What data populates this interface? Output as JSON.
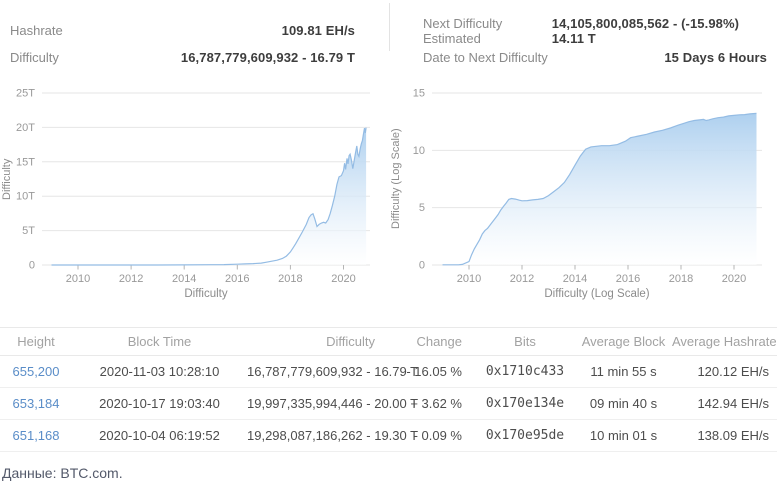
{
  "stats": {
    "left": [
      {
        "label": "Hashrate",
        "value": "109.81 EH/s"
      },
      {
        "label": "Difficulty",
        "value": "16,787,779,609,932 - 16.79 T"
      }
    ],
    "right": [
      {
        "label": "Next Difficulty Estimated",
        "value": "14,105,800,085,562 - (-15.98%) 14.11 T"
      },
      {
        "label": "Date to Next Difficulty",
        "value": "15 Days 6 Hours"
      }
    ]
  },
  "colors": {
    "line": "#94bce4",
    "fill_top": "#aed0ef",
    "fill_bottom": "#ffffff",
    "gridline": "#e6e6e6",
    "tick_text": "#999999",
    "tick_mark": "#b5b5b5",
    "link": "#5a8dc8",
    "change_up": "#2ba84a",
    "change_down": "#e25252"
  },
  "chart_data": [
    {
      "type": "area",
      "title": "Difficulty",
      "xlabel": "Difficulty",
      "ylabel": "Difficulty",
      "ylim": [
        0,
        25
      ],
      "xlim": [
        2008.64,
        2021.0
      ],
      "grid": true,
      "y_ticks": [
        {
          "v": 0,
          "label": "0"
        },
        {
          "v": 5,
          "label": "5T"
        },
        {
          "v": 10,
          "label": "10T"
        },
        {
          "v": 15,
          "label": "15T"
        },
        {
          "v": 20,
          "label": "20T"
        },
        {
          "v": 25,
          "label": "25T"
        }
      ],
      "x_ticks": [
        2010,
        2012,
        2014,
        2016,
        2018,
        2020
      ],
      "points": [
        [
          2009.0,
          0.001
        ],
        [
          2010.0,
          0.001
        ],
        [
          2011.0,
          0.002
        ],
        [
          2012.0,
          0.003
        ],
        [
          2013.0,
          0.005
        ],
        [
          2014.0,
          0.02
        ],
        [
          2015.0,
          0.05
        ],
        [
          2015.5,
          0.06
        ],
        [
          2016.0,
          0.12
        ],
        [
          2016.3,
          0.16
        ],
        [
          2016.6,
          0.21
        ],
        [
          2016.9,
          0.28
        ],
        [
          2017.1,
          0.4
        ],
        [
          2017.3,
          0.55
        ],
        [
          2017.5,
          0.7
        ],
        [
          2017.7,
          0.95
        ],
        [
          2017.85,
          1.3
        ],
        [
          2018.0,
          1.9
        ],
        [
          2018.1,
          2.5
        ],
        [
          2018.2,
          3.1
        ],
        [
          2018.3,
          3.8
        ],
        [
          2018.45,
          4.8
        ],
        [
          2018.6,
          5.9
        ],
        [
          2018.7,
          6.9
        ],
        [
          2018.78,
          7.3
        ],
        [
          2018.85,
          7.45
        ],
        [
          2018.92,
          6.7
        ],
        [
          2019.0,
          5.6
        ],
        [
          2019.08,
          5.9
        ],
        [
          2019.17,
          6.1
        ],
        [
          2019.25,
          6.2
        ],
        [
          2019.33,
          6.1
        ],
        [
          2019.42,
          6.6
        ],
        [
          2019.5,
          7.5
        ],
        [
          2019.58,
          8.6
        ],
        [
          2019.67,
          10.0
        ],
        [
          2019.75,
          11.7
        ],
        [
          2019.83,
          12.8
        ],
        [
          2019.92,
          13.0
        ],
        [
          2020.0,
          13.7
        ],
        [
          2020.04,
          14.8
        ],
        [
          2020.08,
          13.9
        ],
        [
          2020.13,
          15.5
        ],
        [
          2020.17,
          14.7
        ],
        [
          2020.21,
          15.9
        ],
        [
          2020.25,
          16.1
        ],
        [
          2020.3,
          15.2
        ],
        [
          2020.35,
          14.0
        ],
        [
          2020.4,
          15.1
        ],
        [
          2020.45,
          16.2
        ],
        [
          2020.5,
          17.3
        ],
        [
          2020.54,
          16.1
        ],
        [
          2020.58,
          15.8
        ],
        [
          2020.63,
          16.9
        ],
        [
          2020.67,
          17.6
        ],
        [
          2020.71,
          18.1
        ],
        [
          2020.75,
          19.0
        ],
        [
          2020.79,
          19.9
        ],
        [
          2020.82,
          19.2
        ],
        [
          2020.85,
          19.97
        ]
      ]
    },
    {
      "type": "area",
      "title": "Difficulty (Log Scale)",
      "xlabel": "Difficulty (Log Scale)",
      "ylabel": "Difficulty (Log Scale)",
      "ylim": [
        0,
        15
      ],
      "xlim": [
        2008.6,
        2021.06
      ],
      "grid": true,
      "y_ticks": [
        {
          "v": 0,
          "label": "0"
        },
        {
          "v": 5,
          "label": "5"
        },
        {
          "v": 10,
          "label": "10"
        },
        {
          "v": 15,
          "label": "15"
        }
      ],
      "x_ticks": [
        2010,
        2012,
        2014,
        2016,
        2018,
        2020
      ],
      "points": [
        [
          2009.0,
          0.02
        ],
        [
          2009.6,
          0.02
        ],
        [
          2009.75,
          0.05
        ],
        [
          2010.0,
          0.3
        ],
        [
          2010.1,
          0.9
        ],
        [
          2010.2,
          1.4
        ],
        [
          2010.3,
          1.8
        ],
        [
          2010.4,
          2.2
        ],
        [
          2010.5,
          2.7
        ],
        [
          2010.6,
          3.0
        ],
        [
          2010.7,
          3.2
        ],
        [
          2010.8,
          3.5
        ],
        [
          2010.9,
          3.8
        ],
        [
          2011.0,
          4.1
        ],
        [
          2011.1,
          4.4
        ],
        [
          2011.2,
          4.8
        ],
        [
          2011.3,
          5.1
        ],
        [
          2011.4,
          5.4
        ],
        [
          2011.5,
          5.72
        ],
        [
          2011.6,
          5.8
        ],
        [
          2011.75,
          5.75
        ],
        [
          2011.9,
          5.65
        ],
        [
          2012.0,
          5.6
        ],
        [
          2012.2,
          5.62
        ],
        [
          2012.4,
          5.68
        ],
        [
          2012.6,
          5.72
        ],
        [
          2012.8,
          5.8
        ],
        [
          2013.0,
          6.05
        ],
        [
          2013.2,
          6.4
        ],
        [
          2013.4,
          6.75
        ],
        [
          2013.6,
          7.2
        ],
        [
          2013.8,
          7.9
        ],
        [
          2014.0,
          8.7
        ],
        [
          2014.2,
          9.5
        ],
        [
          2014.4,
          10.1
        ],
        [
          2014.6,
          10.3
        ],
        [
          2014.8,
          10.35
        ],
        [
          2015.0,
          10.4
        ],
        [
          2015.3,
          10.4
        ],
        [
          2015.6,
          10.5
        ],
        [
          2015.9,
          10.8
        ],
        [
          2016.1,
          11.1
        ],
        [
          2016.4,
          11.25
        ],
        [
          2016.7,
          11.4
        ],
        [
          2017.0,
          11.6
        ],
        [
          2017.3,
          11.75
        ],
        [
          2017.6,
          11.95
        ],
        [
          2017.9,
          12.2
        ],
        [
          2018.1,
          12.35
        ],
        [
          2018.3,
          12.5
        ],
        [
          2018.5,
          12.6
        ],
        [
          2018.7,
          12.65
        ],
        [
          2018.85,
          12.7
        ],
        [
          2018.95,
          12.6
        ],
        [
          2019.05,
          12.65
        ],
        [
          2019.2,
          12.75
        ],
        [
          2019.4,
          12.85
        ],
        [
          2019.6,
          12.9
        ],
        [
          2019.8,
          13.0
        ],
        [
          2020.0,
          13.05
        ],
        [
          2020.2,
          13.1
        ],
        [
          2020.4,
          13.12
        ],
        [
          2020.6,
          13.18
        ],
        [
          2020.85,
          13.22
        ]
      ]
    }
  ],
  "table": {
    "columns": [
      {
        "key": "height",
        "label": "Height",
        "align": "c",
        "cls": "c-height"
      },
      {
        "key": "block_time",
        "label": "Block Time",
        "align": "c",
        "cls": "c-time"
      },
      {
        "key": "difficulty",
        "label": "Difficulty",
        "align": "r",
        "cls": "c-diff"
      },
      {
        "key": "change",
        "label": "Change",
        "align": "r",
        "cls": "c-chg"
      },
      {
        "key": "bits",
        "label": "Bits",
        "align": "c",
        "cls": "c-bits"
      },
      {
        "key": "avg_block",
        "label": "Average Block",
        "align": "c",
        "cls": "c-ab"
      },
      {
        "key": "avg_hashrate",
        "label": "Average Hashrate",
        "align": "r",
        "cls": "c-ah"
      }
    ],
    "rows": [
      {
        "height": "655,200",
        "block_time": "2020-11-03 10:28:10",
        "difficulty": "16,787,779,609,932 - 16.79 T",
        "change": "- 16.05 %",
        "change_dir": "down",
        "bits": "0x1710c433",
        "avg_block": "11 min 55 s",
        "avg_hashrate": "120.12 EH/s"
      },
      {
        "height": "653,184",
        "block_time": "2020-10-17 19:03:40",
        "difficulty": "19,997,335,994,446 - 20.00 T",
        "change": "+ 3.62 %",
        "change_dir": "up",
        "bits": "0x170e134e",
        "avg_block": "09 min 40 s",
        "avg_hashrate": "142.94 EH/s"
      },
      {
        "height": "651,168",
        "block_time": "2020-10-04 06:19:52",
        "difficulty": "19,298,087,186,262 - 19.30 T",
        "change": "- 0.09 %",
        "change_dir": "down",
        "bits": "0x170e95de",
        "avg_block": "10 min 01 s",
        "avg_hashrate": "138.09 EH/s"
      }
    ]
  },
  "footer": {
    "source": "Данные: BTC.com."
  }
}
